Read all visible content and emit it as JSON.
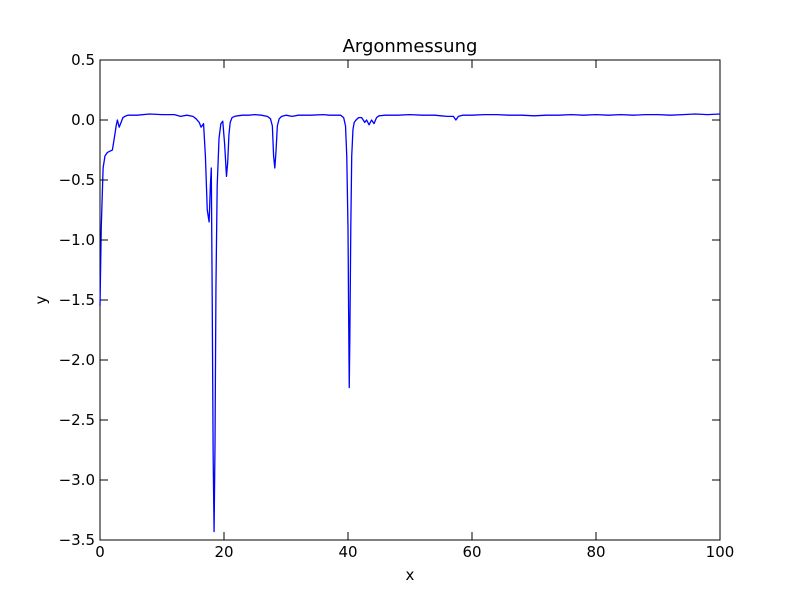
{
  "chart_data": {
    "type": "line",
    "title": "Argonmessung",
    "xlabel": "x",
    "ylabel": "y",
    "xlim": [
      0,
      100
    ],
    "ylim": [
      -3.5,
      0.5
    ],
    "xticks": [
      0,
      20,
      40,
      60,
      80,
      100
    ],
    "xtick_labels": [
      "0",
      "20",
      "40",
      "60",
      "80",
      "100"
    ],
    "yticks": [
      0.5,
      0.0,
      -0.5,
      -1.0,
      -1.5,
      -2.0,
      -2.5,
      -3.0,
      -3.5
    ],
    "ytick_labels": [
      "0.5",
      "0.0",
      "−0.5",
      "−1.0",
      "−1.5",
      "−2.0",
      "−2.5",
      "−3.0",
      "−3.5"
    ],
    "grid": false,
    "line_color": "#0000ff",
    "series": [
      {
        "x": [
          0,
          0.2,
          0.5,
          0.8,
          1.2,
          1.6,
          2.0,
          2.4,
          2.6,
          2.8,
          3.1,
          3.4,
          3.7,
          4.0,
          4.5,
          5.0,
          6,
          8,
          10,
          12,
          13,
          14,
          15,
          15.5,
          16,
          16.3,
          16.7,
          17.0,
          17.3,
          17.6,
          17.8,
          17.95,
          18.1,
          18.25,
          18.4,
          18.55,
          18.7,
          18.9,
          19.2,
          19.5,
          19.8,
          20.1,
          20.4,
          20.6,
          20.8,
          21.0,
          21.3,
          21.7,
          22.2,
          23,
          24,
          25,
          26,
          27,
          27.5,
          27.8,
          28.0,
          28.2,
          28.4,
          28.6,
          28.9,
          29.3,
          30,
          31,
          32,
          34,
          36,
          37,
          38,
          38.8,
          39.3,
          39.6,
          39.8,
          40.0,
          40.1,
          40.2,
          40.3,
          40.45,
          40.6,
          40.8,
          41.0,
          41.3,
          41.7,
          42.2,
          42.7,
          43.0,
          43.4,
          43.8,
          44.2,
          44.6,
          45.0,
          46,
          48,
          50,
          52,
          54,
          55,
          56,
          57,
          57.4,
          57.8,
          58.5,
          60,
          62,
          64,
          66,
          68,
          70,
          72,
          74,
          76,
          78,
          80,
          82,
          84,
          86,
          88,
          90,
          92,
          94,
          96,
          98,
          100
        ],
        "y": [
          -1.55,
          -0.9,
          -0.4,
          -0.3,
          -0.27,
          -0.26,
          -0.25,
          -0.12,
          -0.05,
          0.0,
          -0.06,
          -0.02,
          0.02,
          0.03,
          0.04,
          0.04,
          0.04,
          0.05,
          0.045,
          0.045,
          0.03,
          0.04,
          0.03,
          0.01,
          -0.02,
          -0.06,
          -0.03,
          -0.3,
          -0.75,
          -0.85,
          -0.55,
          -0.4,
          -1.5,
          -2.8,
          -3.43,
          -2.7,
          -1.4,
          -0.55,
          -0.15,
          -0.03,
          -0.01,
          -0.2,
          -0.47,
          -0.35,
          -0.12,
          -0.02,
          0.02,
          0.03,
          0.035,
          0.04,
          0.04,
          0.045,
          0.04,
          0.03,
          0.01,
          -0.05,
          -0.3,
          -0.4,
          -0.25,
          -0.05,
          0.01,
          0.03,
          0.04,
          0.03,
          0.04,
          0.04,
          0.045,
          0.04,
          0.04,
          0.04,
          0.02,
          -0.05,
          -0.3,
          -0.9,
          -1.6,
          -2.23,
          -1.8,
          -0.9,
          -0.3,
          -0.08,
          -0.02,
          0.0,
          0.02,
          0.02,
          -0.02,
          0.0,
          -0.04,
          0.0,
          -0.03,
          0.02,
          0.035,
          0.04,
          0.04,
          0.045,
          0.04,
          0.04,
          0.035,
          0.03,
          0.03,
          0.0,
          0.03,
          0.04,
          0.04,
          0.045,
          0.045,
          0.04,
          0.04,
          0.035,
          0.04,
          0.04,
          0.045,
          0.04,
          0.045,
          0.04,
          0.045,
          0.04,
          0.045,
          0.045,
          0.04,
          0.045,
          0.05,
          0.045,
          0.05
        ]
      }
    ]
  }
}
